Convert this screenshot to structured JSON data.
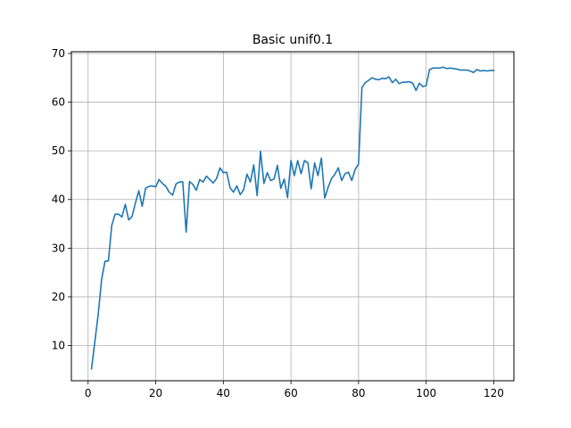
{
  "chart_data": {
    "type": "line",
    "title": "Basic unif0.1",
    "xlabel": "",
    "ylabel": "",
    "xlim": [
      -4.95,
      125.95
    ],
    "ylim": [
      2.77,
      70.36
    ],
    "x_ticks": [
      0,
      20,
      40,
      60,
      80,
      100,
      120
    ],
    "y_ticks": [
      10,
      20,
      30,
      40,
      50,
      60,
      70
    ],
    "grid": true,
    "line_color": "#1f77b4",
    "series": [
      {
        "x": [
          1,
          2,
          3,
          4,
          5,
          6,
          7,
          8,
          9,
          10,
          11,
          12,
          13,
          14,
          15,
          16,
          17,
          18,
          19,
          20,
          21,
          22,
          23,
          24,
          25,
          26,
          27,
          28,
          29,
          30,
          31,
          32,
          33,
          34,
          35,
          36,
          37,
          38,
          39,
          40,
          41,
          42,
          43,
          44,
          45,
          46,
          47,
          48,
          49,
          50,
          51,
          52,
          53,
          54,
          55,
          56,
          57,
          58,
          59,
          60,
          61,
          62,
          63,
          64,
          65,
          66,
          67,
          68,
          69,
          70,
          71,
          72,
          73,
          74,
          75,
          76,
          77,
          78,
          79,
          80,
          81,
          82,
          83,
          84,
          85,
          86,
          87,
          88,
          89,
          90,
          91,
          92,
          93,
          94,
          95,
          96,
          97,
          98,
          99,
          100,
          101,
          102,
          103,
          104,
          105,
          106,
          107,
          108,
          109,
          110,
          111,
          112,
          113,
          114,
          115,
          116,
          117,
          118,
          119,
          120
        ],
        "values": [
          5.2,
          10.8,
          16.5,
          23.6,
          27.3,
          27.4,
          34.7,
          37.0,
          37.0,
          36.4,
          39.0,
          35.8,
          36.5,
          39.3,
          41.8,
          38.6,
          42.3,
          42.7,
          42.8,
          42.6,
          44.1,
          43.3,
          42.7,
          41.5,
          40.9,
          43.2,
          43.6,
          43.6,
          33.3,
          43.7,
          43.1,
          41.9,
          44.1,
          43.6,
          44.8,
          44.1,
          43.4,
          44.3,
          46.5,
          45.5,
          45.6,
          42.4,
          41.5,
          42.8,
          41.0,
          42.0,
          45.2,
          43.6,
          47.1,
          40.8,
          49.9,
          43.3,
          45.5,
          43.9,
          44.2,
          47.0,
          42.3,
          44.2,
          40.4,
          48.0,
          44.9,
          48.0,
          45.3,
          48.0,
          47.5,
          42.2,
          47.5,
          44.9,
          48.5,
          40.3,
          42.5,
          44.3,
          45.2,
          46.5,
          43.9,
          45.3,
          45.6,
          43.9,
          46.2,
          47.3,
          63.0,
          64.0,
          64.5,
          65.0,
          64.7,
          64.6,
          64.9,
          64.8,
          65.2,
          64.0,
          64.7,
          63.8,
          64.1,
          64.1,
          64.2,
          63.9,
          62.4,
          63.9,
          63.2,
          63.4,
          66.7,
          67.0,
          67.0,
          67.0,
          67.2,
          66.9,
          67.0,
          66.9,
          66.8,
          66.6,
          66.6,
          66.6,
          66.4,
          66.1,
          66.7,
          66.4,
          66.5,
          66.4,
          66.5,
          66.5
        ]
      }
    ]
  }
}
